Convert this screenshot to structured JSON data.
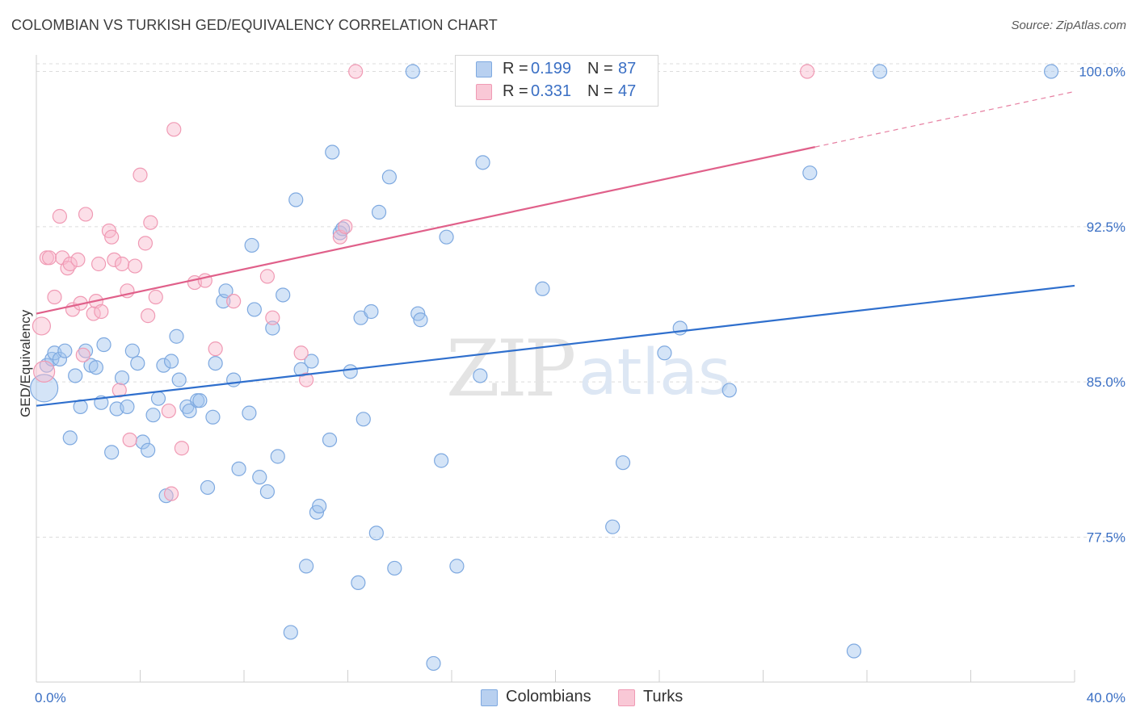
{
  "title": "COLOMBIAN VS TURKISH GED/EQUIVALENCY CORRELATION CHART",
  "source": "Source: ZipAtlas.com",
  "watermark": {
    "zip": "ZIP",
    "atlas": "atlas"
  },
  "legend_top": {
    "r_label": "R =",
    "n_label": "N =",
    "rows": [
      {
        "series": "Colombians",
        "r": "0.199",
        "n": "87",
        "color": "#7ea9e0"
      },
      {
        "series": "Turks",
        "r": "0.331",
        "n": "47",
        "color": "#f09ab4"
      }
    ]
  },
  "legend_bottom": [
    {
      "label": "Colombians",
      "color": "#7ea9e0"
    },
    {
      "label": "Turks",
      "color": "#f09ab4"
    }
  ],
  "chart_data": {
    "type": "scatter",
    "title": "COLOMBIAN VS TURKISH GED/EQUIVALENCY CORRELATION CHART",
    "xlabel": "",
    "ylabel": "GED/Equivalency",
    "xlim": [
      0,
      40
    ],
    "ylim": [
      70.5,
      100.8
    ],
    "x_tick_labels": [
      "0.0%",
      "40.0%"
    ],
    "y_ticks": [
      77.5,
      85.0,
      92.5,
      100.0
    ],
    "y_tick_labels": [
      "77.5%",
      "85.0%",
      "92.5%",
      "100.0%"
    ],
    "grid": true,
    "legend_position": "top-center",
    "series": [
      {
        "name": "Colombians",
        "color": "#7ea9e0",
        "line_color": "#2f6fcd",
        "trend": {
          "x": [
            0,
            40
          ],
          "y": [
            83.85,
            89.65
          ]
        },
        "points": [
          [
            0.3,
            84.7
          ],
          [
            0.4,
            85.8
          ],
          [
            0.6,
            86.1
          ],
          [
            0.7,
            86.4
          ],
          [
            0.9,
            86.1
          ],
          [
            1.1,
            86.5
          ],
          [
            1.3,
            82.3
          ],
          [
            1.5,
            85.3
          ],
          [
            1.7,
            83.8
          ],
          [
            1.9,
            86.5
          ],
          [
            2.1,
            85.8
          ],
          [
            2.3,
            85.7
          ],
          [
            2.5,
            84.0
          ],
          [
            2.6,
            86.8
          ],
          [
            2.9,
            81.6
          ],
          [
            3.1,
            83.7
          ],
          [
            3.3,
            85.2
          ],
          [
            3.5,
            83.8
          ],
          [
            3.7,
            86.5
          ],
          [
            3.9,
            85.9
          ],
          [
            4.1,
            82.1
          ],
          [
            4.3,
            81.7
          ],
          [
            4.5,
            83.4
          ],
          [
            4.7,
            84.2
          ],
          [
            4.9,
            85.8
          ],
          [
            5.0,
            79.5
          ],
          [
            5.2,
            86.0
          ],
          [
            5.4,
            87.2
          ],
          [
            5.5,
            85.1
          ],
          [
            5.8,
            83.8
          ],
          [
            5.9,
            83.6
          ],
          [
            6.2,
            84.1
          ],
          [
            6.3,
            84.1
          ],
          [
            6.6,
            79.9
          ],
          [
            6.8,
            83.3
          ],
          [
            6.9,
            85.9
          ],
          [
            7.2,
            88.9
          ],
          [
            7.3,
            89.4
          ],
          [
            7.6,
            85.1
          ],
          [
            7.8,
            80.8
          ],
          [
            8.2,
            83.5
          ],
          [
            8.3,
            91.6
          ],
          [
            8.4,
            88.5
          ],
          [
            8.6,
            80.4
          ],
          [
            8.9,
            79.7
          ],
          [
            9.1,
            87.6
          ],
          [
            9.3,
            81.4
          ],
          [
            9.5,
            89.2
          ],
          [
            9.8,
            72.9
          ],
          [
            10.0,
            93.8
          ],
          [
            10.2,
            85.6
          ],
          [
            10.4,
            76.1
          ],
          [
            10.6,
            86.0
          ],
          [
            10.8,
            78.7
          ],
          [
            10.9,
            79.0
          ],
          [
            11.3,
            82.2
          ],
          [
            11.4,
            96.1
          ],
          [
            11.7,
            92.2
          ],
          [
            11.8,
            92.4
          ],
          [
            12.1,
            85.5
          ],
          [
            12.4,
            75.3
          ],
          [
            12.5,
            88.1
          ],
          [
            12.6,
            83.2
          ],
          [
            12.9,
            88.4
          ],
          [
            13.1,
            77.7
          ],
          [
            13.2,
            93.2
          ],
          [
            13.6,
            94.9
          ],
          [
            13.8,
            76.0
          ],
          [
            14.5,
            100.0
          ],
          [
            14.7,
            88.3
          ],
          [
            14.8,
            88.0
          ],
          [
            15.3,
            71.4
          ],
          [
            15.6,
            81.2
          ],
          [
            15.8,
            92.0
          ],
          [
            16.2,
            76.1
          ],
          [
            17.1,
            85.3
          ],
          [
            17.2,
            95.6
          ],
          [
            19.5,
            89.5
          ],
          [
            22.2,
            78.0
          ],
          [
            22.6,
            81.1
          ],
          [
            24.2,
            86.4
          ],
          [
            24.8,
            87.6
          ],
          [
            26.7,
            84.6
          ],
          [
            29.8,
            95.1
          ],
          [
            31.5,
            72.0
          ],
          [
            32.5,
            100.0
          ],
          [
            39.1,
            100.0
          ]
        ]
      },
      {
        "name": "Turks",
        "color": "#f09ab4",
        "line_color": "#e0608a",
        "trend": {
          "x": [
            0,
            30
          ],
          "y": [
            88.3,
            96.35
          ]
        },
        "trend_dashed": {
          "x": [
            30,
            40
          ],
          "y": [
            96.35,
            99.03
          ]
        },
        "points": [
          [
            0.2,
            87.7
          ],
          [
            0.3,
            85.5
          ],
          [
            0.4,
            91.0
          ],
          [
            0.5,
            91.0
          ],
          [
            0.7,
            89.1
          ],
          [
            0.9,
            93.0
          ],
          [
            1.0,
            91.0
          ],
          [
            1.2,
            90.5
          ],
          [
            1.3,
            90.7
          ],
          [
            1.4,
            88.5
          ],
          [
            1.6,
            90.9
          ],
          [
            1.7,
            88.8
          ],
          [
            1.8,
            86.3
          ],
          [
            1.9,
            93.1
          ],
          [
            2.2,
            88.3
          ],
          [
            2.3,
            88.9
          ],
          [
            2.4,
            90.7
          ],
          [
            2.5,
            88.4
          ],
          [
            2.8,
            92.3
          ],
          [
            2.9,
            92.0
          ],
          [
            3.0,
            90.9
          ],
          [
            3.2,
            84.6
          ],
          [
            3.3,
            90.7
          ],
          [
            3.5,
            89.4
          ],
          [
            3.6,
            82.2
          ],
          [
            3.8,
            90.6
          ],
          [
            4.0,
            95.0
          ],
          [
            4.2,
            91.7
          ],
          [
            4.3,
            88.2
          ],
          [
            4.4,
            92.7
          ],
          [
            4.6,
            89.1
          ],
          [
            5.1,
            83.6
          ],
          [
            5.2,
            79.6
          ],
          [
            5.3,
            97.2
          ],
          [
            5.6,
            81.8
          ],
          [
            6.1,
            89.8
          ],
          [
            6.5,
            89.9
          ],
          [
            6.9,
            86.6
          ],
          [
            7.6,
            88.9
          ],
          [
            8.9,
            90.1
          ],
          [
            9.1,
            88.1
          ],
          [
            10.2,
            86.4
          ],
          [
            10.4,
            85.1
          ],
          [
            11.7,
            92.0
          ],
          [
            11.9,
            92.5
          ],
          [
            12.3,
            100.0
          ],
          [
            29.7,
            100.0
          ]
        ]
      }
    ]
  }
}
